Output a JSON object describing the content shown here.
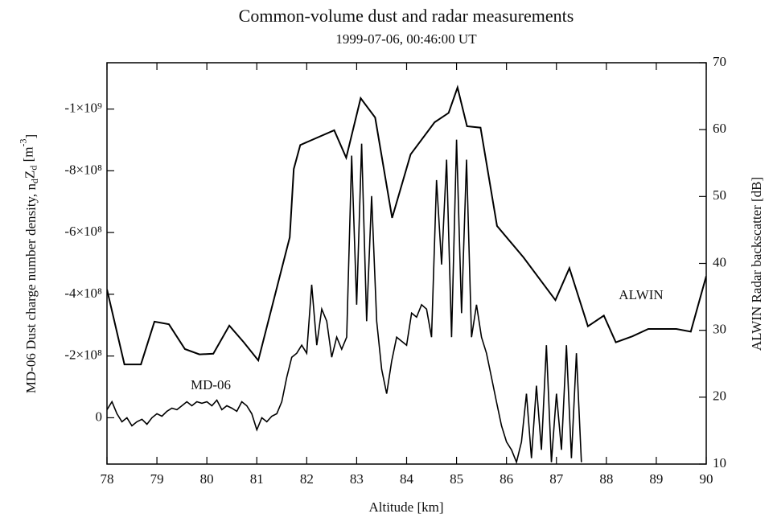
{
  "chart_data": {
    "type": "line",
    "title": "Common-volume dust and radar measurements",
    "subtitle": "1999-07-06, 00:46:00 UT",
    "x_label": "Altitude [km]",
    "y_label_parts": [
      "MD-06 Dust charge number density, n",
      "d",
      "Z",
      "d",
      " [m",
      "-3",
      "]"
    ],
    "y2_label": "ALWIN Radar backscatter [dB]",
    "xlim": [
      78,
      90
    ],
    "xticks": [
      78,
      79,
      80,
      81,
      82,
      83,
      84,
      85,
      86,
      87,
      88,
      89,
      90
    ],
    "ylim": [
      150000000.0,
      -1150000000.0
    ],
    "yticks": [
      {
        "value": -1000000000.0,
        "label": "-1×10⁹"
      },
      {
        "value": -800000000.0,
        "label": "-8×10⁸"
      },
      {
        "value": -600000000.0,
        "label": "-6×10⁸"
      },
      {
        "value": -400000000.0,
        "label": "-4×10⁸"
      },
      {
        "value": -200000000.0,
        "label": "-2×10⁸"
      },
      0
    ],
    "y2lim": [
      10,
      70
    ],
    "y2ticks": [
      10,
      20,
      30,
      40,
      50,
      60,
      70
    ],
    "series": [
      {
        "name": "MD-06",
        "color": "#000000",
        "x": [
          78.0,
          78.1,
          78.2,
          78.3,
          78.4,
          78.5,
          78.6,
          78.7,
          78.8,
          78.9,
          79.0,
          79.1,
          79.2,
          79.3,
          79.4,
          79.5,
          79.6,
          79.7,
          79.8,
          79.9,
          80.0,
          80.1,
          80.2,
          80.3,
          80.4,
          80.5,
          80.6,
          80.7,
          80.8,
          80.9,
          81.0,
          81.1,
          81.2,
          81.3,
          81.4,
          81.5,
          81.6,
          81.7,
          81.8,
          81.9,
          82.0,
          82.1,
          82.2,
          82.3,
          82.4,
          82.5,
          82.6,
          82.7,
          82.8,
          82.9,
          83.0,
          83.1,
          83.2,
          83.3,
          83.4,
          83.5,
          83.6,
          83.7,
          83.8,
          83.9,
          84.0,
          84.1,
          84.2,
          84.3,
          84.4,
          84.5,
          84.6,
          84.7,
          84.8,
          84.9,
          85.0,
          85.1,
          85.2,
          85.3,
          85.4,
          85.5,
          85.6,
          85.7,
          85.8,
          85.9,
          86.0,
          86.1,
          86.2,
          86.3,
          86.4,
          86.5,
          86.6,
          86.7,
          86.8,
          86.9,
          87.0,
          87.1,
          87.2,
          87.3,
          87.4,
          87.5
        ],
        "values": [
          -26000000.0,
          -52000000.0,
          -13000000.0,
          13000000.0,
          0,
          26000000.0,
          13000000.0,
          5000000.0,
          21000000.0,
          0,
          -13000000.0,
          -5000000.0,
          -21000000.0,
          -31000000.0,
          -26000000.0,
          -39000000.0,
          -52000000.0,
          -39000000.0,
          -52000000.0,
          -47000000.0,
          -52000000.0,
          -39000000.0,
          -57000000.0,
          -26000000.0,
          -39000000.0,
          -31000000.0,
          -21000000.0,
          -52000000.0,
          -39000000.0,
          -13000000.0,
          39000000.0,
          0,
          13000000.0,
          -5000000.0,
          -13000000.0,
          -52000000.0,
          -131000000.0,
          -196000000.0,
          -209000000.0,
          -235000000.0,
          -209000000.0,
          -431000000.0,
          -235000000.0,
          -352000000.0,
          -313000000.0,
          -196000000.0,
          -261000000.0,
          -222000000.0,
          -261000000.0,
          -849000000.0,
          -366000000.0,
          -888000000.0,
          -313000000.0,
          -718000000.0,
          -313000000.0,
          -157000000.0,
          -78000000.0,
          -183000000.0,
          -261000000.0,
          -248000000.0,
          -235000000.0,
          -339000000.0,
          -326000000.0,
          -366000000.0,
          -352000000.0,
          -261000000.0,
          -770000000.0,
          -496000000.0,
          -836000000.0,
          -261000000.0,
          -901000000.0,
          -339000000.0,
          -836000000.0,
          -261000000.0,
          -366000000.0,
          -261000000.0,
          -209000000.0,
          -131000000.0,
          -52000000.0,
          26000000.0,
          78000000.0,
          104000000.0,
          144000000.0,
          78000000.0,
          -78000000.0,
          131000000.0,
          -104000000.0,
          104000000.0,
          -235000000.0,
          144000000.0,
          -78000000.0,
          104000000.0,
          -235000000.0,
          131000000.0,
          -209000000.0,
          144000000.0
        ]
      },
      {
        "name": "ALWIN",
        "color": "#000000",
        "axis": "y2",
        "x": [
          78.0,
          78.35,
          78.68,
          78.95,
          79.24,
          79.56,
          79.85,
          80.13,
          80.45,
          80.74,
          81.03,
          81.66,
          81.74,
          81.87,
          82.55,
          82.79,
          83.08,
          83.37,
          83.71,
          84.08,
          84.56,
          84.84,
          85.02,
          85.21,
          85.48,
          85.81,
          86.34,
          86.98,
          87.26,
          87.63,
          87.95,
          88.19,
          88.52,
          88.84,
          89.4,
          89.69,
          90.0
        ],
        "values": [
          36.1,
          24.9,
          24.9,
          31.3,
          30.9,
          27.2,
          26.4,
          26.5,
          30.7,
          28.2,
          25.5,
          43.9,
          54.1,
          57.7,
          59.9,
          55.8,
          64.7,
          61.8,
          46.8,
          56.3,
          61.1,
          62.5,
          66.3,
          60.5,
          60.3,
          45.6,
          40.9,
          34.5,
          39.3,
          30.6,
          32.2,
          28.2,
          29.1,
          30.2,
          30.2,
          29.8,
          38.1
        ]
      }
    ]
  }
}
